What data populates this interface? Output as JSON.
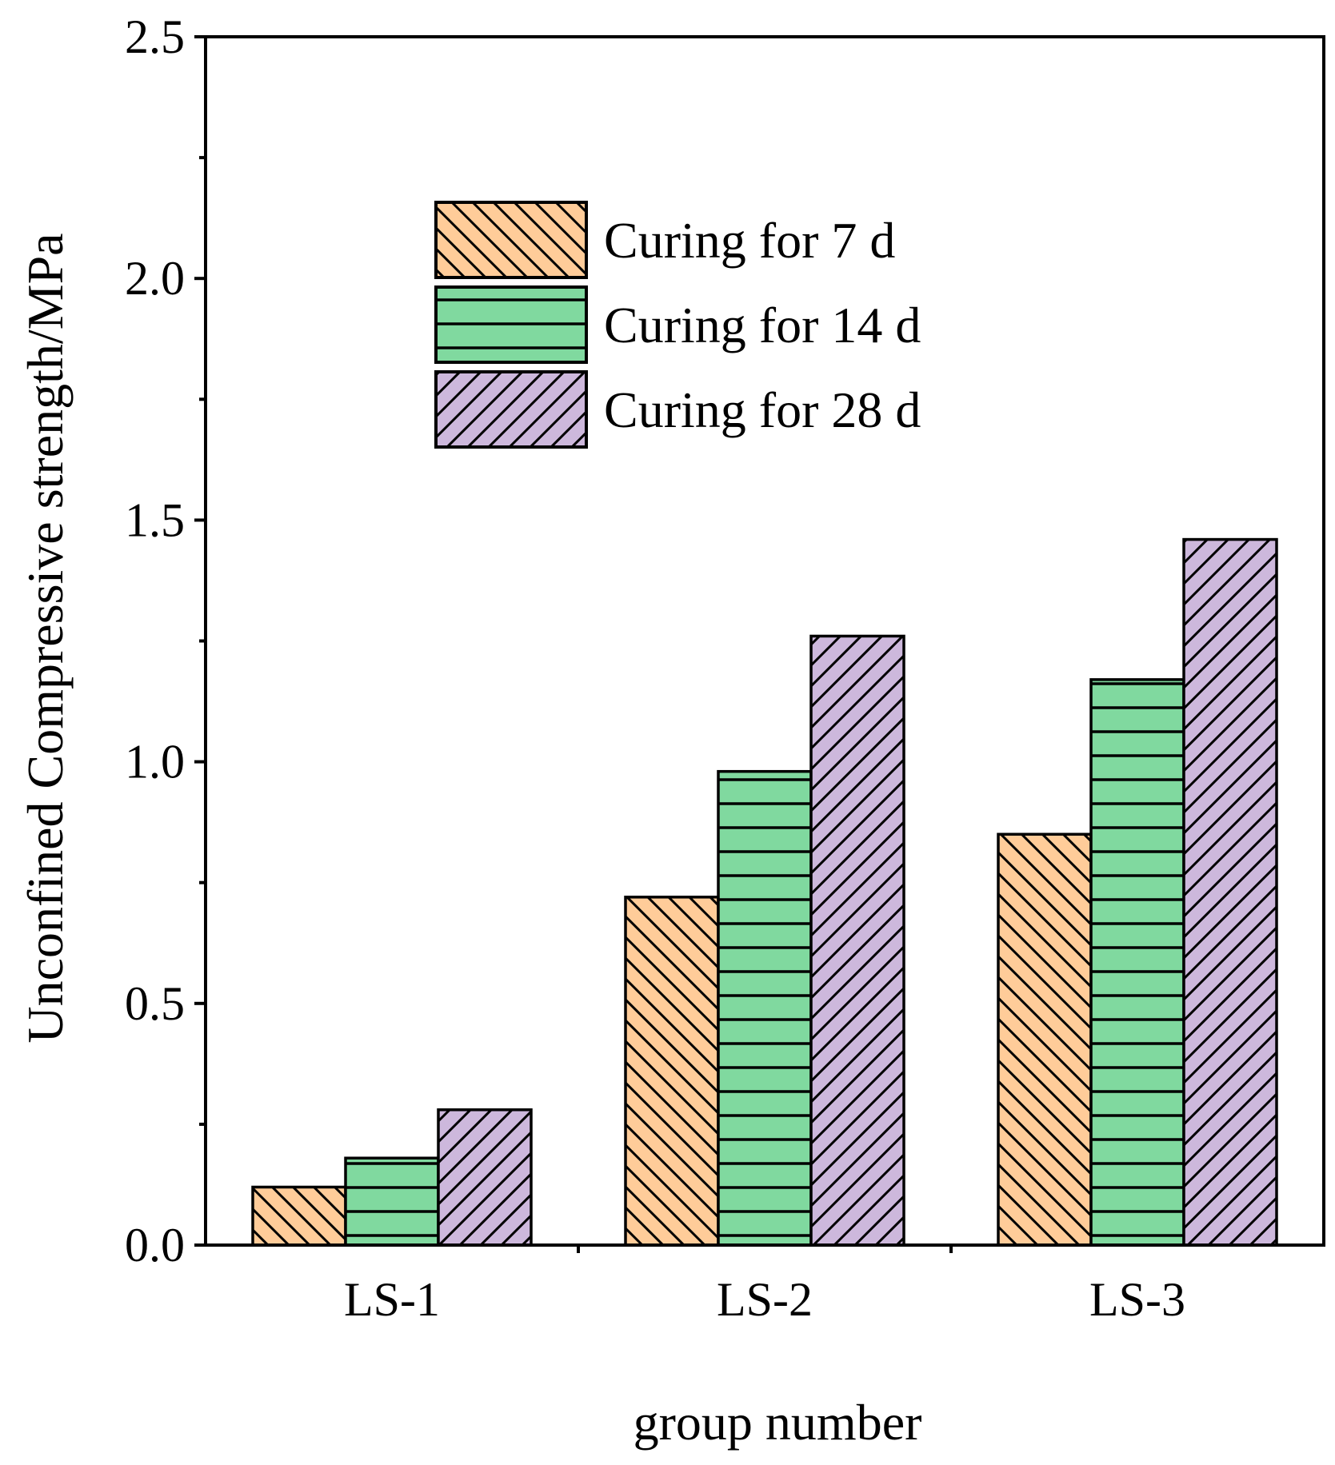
{
  "chart_data": {
    "type": "bar",
    "title": "",
    "xlabel": "group number",
    "ylabel": "Unconfined Compressive strength/MPa",
    "categories": [
      "LS-1",
      "LS-2",
      "LS-3"
    ],
    "ylim": [
      0,
      2.5
    ],
    "yticks": [
      "0.0",
      "0.5",
      "1.0",
      "1.5",
      "2.0",
      "2.5"
    ],
    "yminor_ticks": [
      0.25,
      0.75,
      1.25,
      1.75,
      2.25
    ],
    "grid": false,
    "legend_position": "top-center",
    "series": [
      {
        "name": "Curing for 7 d",
        "values": [
          0.12,
          0.72,
          0.85
        ],
        "color": "#FFCC99",
        "pattern": "diagonal-down"
      },
      {
        "name": "Curing for 14 d",
        "values": [
          0.18,
          0.98,
          1.17
        ],
        "color": "#80D99F",
        "pattern": "horizontal"
      },
      {
        "name": "Curing for 28 d",
        "values": [
          0.28,
          1.26,
          1.46
        ],
        "color": "#CDB8DC",
        "pattern": "diagonal-up"
      }
    ]
  }
}
